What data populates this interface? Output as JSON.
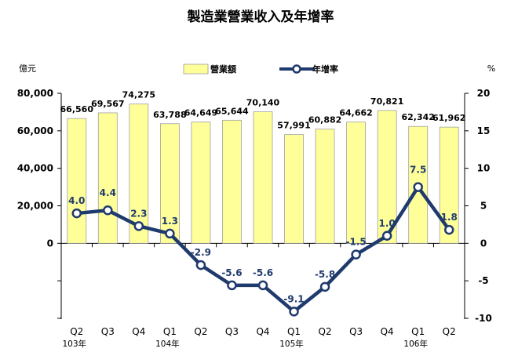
{
  "chart_data": {
    "type": "bar",
    "title": "製造業營業收入及年增率",
    "left_unit": "億元",
    "right_unit": "%",
    "categories": [
      "Q2",
      "Q3",
      "Q4",
      "Q1",
      "Q2",
      "Q3",
      "Q4",
      "Q1",
      "Q2",
      "Q3",
      "Q4",
      "Q1",
      "Q2"
    ],
    "year_labels": [
      "103年",
      "",
      "",
      "104年",
      "",
      "",
      "",
      "105年",
      "",
      "",
      "",
      "106年",
      ""
    ],
    "series": [
      {
        "name": "營業額",
        "type": "bar",
        "axis": "left",
        "color": "#ffff99",
        "values": [
          66560,
          69567,
          74275,
          63788,
          64649,
          65644,
          70140,
          57991,
          60882,
          64662,
          70821,
          62342,
          61962
        ],
        "labels": [
          "66,560",
          "69,567",
          "74,275",
          "63,788",
          "64,649",
          "65,644",
          "70,140",
          "57,991",
          "60,882",
          "64,662",
          "70,821",
          "62,342",
          "61,962"
        ]
      },
      {
        "name": "年增率",
        "type": "line",
        "axis": "right",
        "color": "#1f3a6d",
        "values": [
          4.0,
          4.4,
          2.3,
          1.3,
          -2.9,
          -5.6,
          -5.6,
          -9.1,
          -5.8,
          -1.5,
          1.0,
          7.5,
          1.8
        ],
        "labels": [
          "4.0",
          "4.4",
          "2.3",
          "1.3",
          "-2.9",
          "-5.6",
          "-5.6",
          "-9.1",
          "-5.8",
          "-1.5",
          "1.0",
          "7.5",
          "1.8"
        ]
      }
    ],
    "left_axis": {
      "min": 0,
      "max": 80000,
      "ticks": [
        "80,000",
        "60,000",
        "40,000",
        "20,000",
        "0"
      ]
    },
    "right_axis": {
      "min": -10,
      "max": 20,
      "ticks": [
        "20",
        "15",
        "10",
        "5",
        "0",
        "-5",
        "-10"
      ]
    },
    "legend_position": "top-center",
    "grid": false
  }
}
